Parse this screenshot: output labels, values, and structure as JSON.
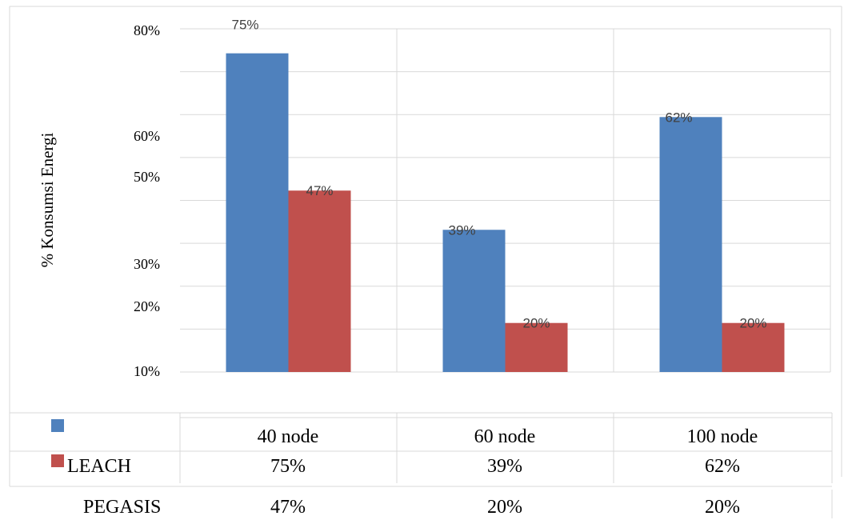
{
  "colors": {
    "series_1": "#4F81BD",
    "series_2": "#C0504D",
    "gridline": "#D9D9D9",
    "frame": "#D9D9D9",
    "text": "#000000",
    "label_text": "#404040"
  },
  "chart_data": {
    "type": "bar",
    "ylabel": "% Konsumsi Energi",
    "y_tick_labels": [
      "80%",
      "60%",
      "50%",
      "30%",
      "20%",
      "10%"
    ],
    "categories": [
      "40 node",
      "60 node",
      "100 node"
    ],
    "series": [
      {
        "name": "LEACH",
        "values": [
          75,
          39,
          62
        ],
        "labels": [
          "75%",
          "39%",
          "62%"
        ]
      },
      {
        "name": "PEGASIS",
        "values": [
          47,
          20,
          20
        ],
        "labels": [
          "47%",
          "20%",
          "20%"
        ]
      }
    ],
    "grid": true,
    "legend": "table-below"
  },
  "data_table": {
    "header": [
      "",
      "40 node",
      "60 node",
      "100 node"
    ],
    "rows": [
      [
        "LEACH",
        "75%",
        "39%",
        "62%"
      ],
      [
        "PEGASIS",
        "47%",
        "20%",
        "20%"
      ]
    ]
  }
}
